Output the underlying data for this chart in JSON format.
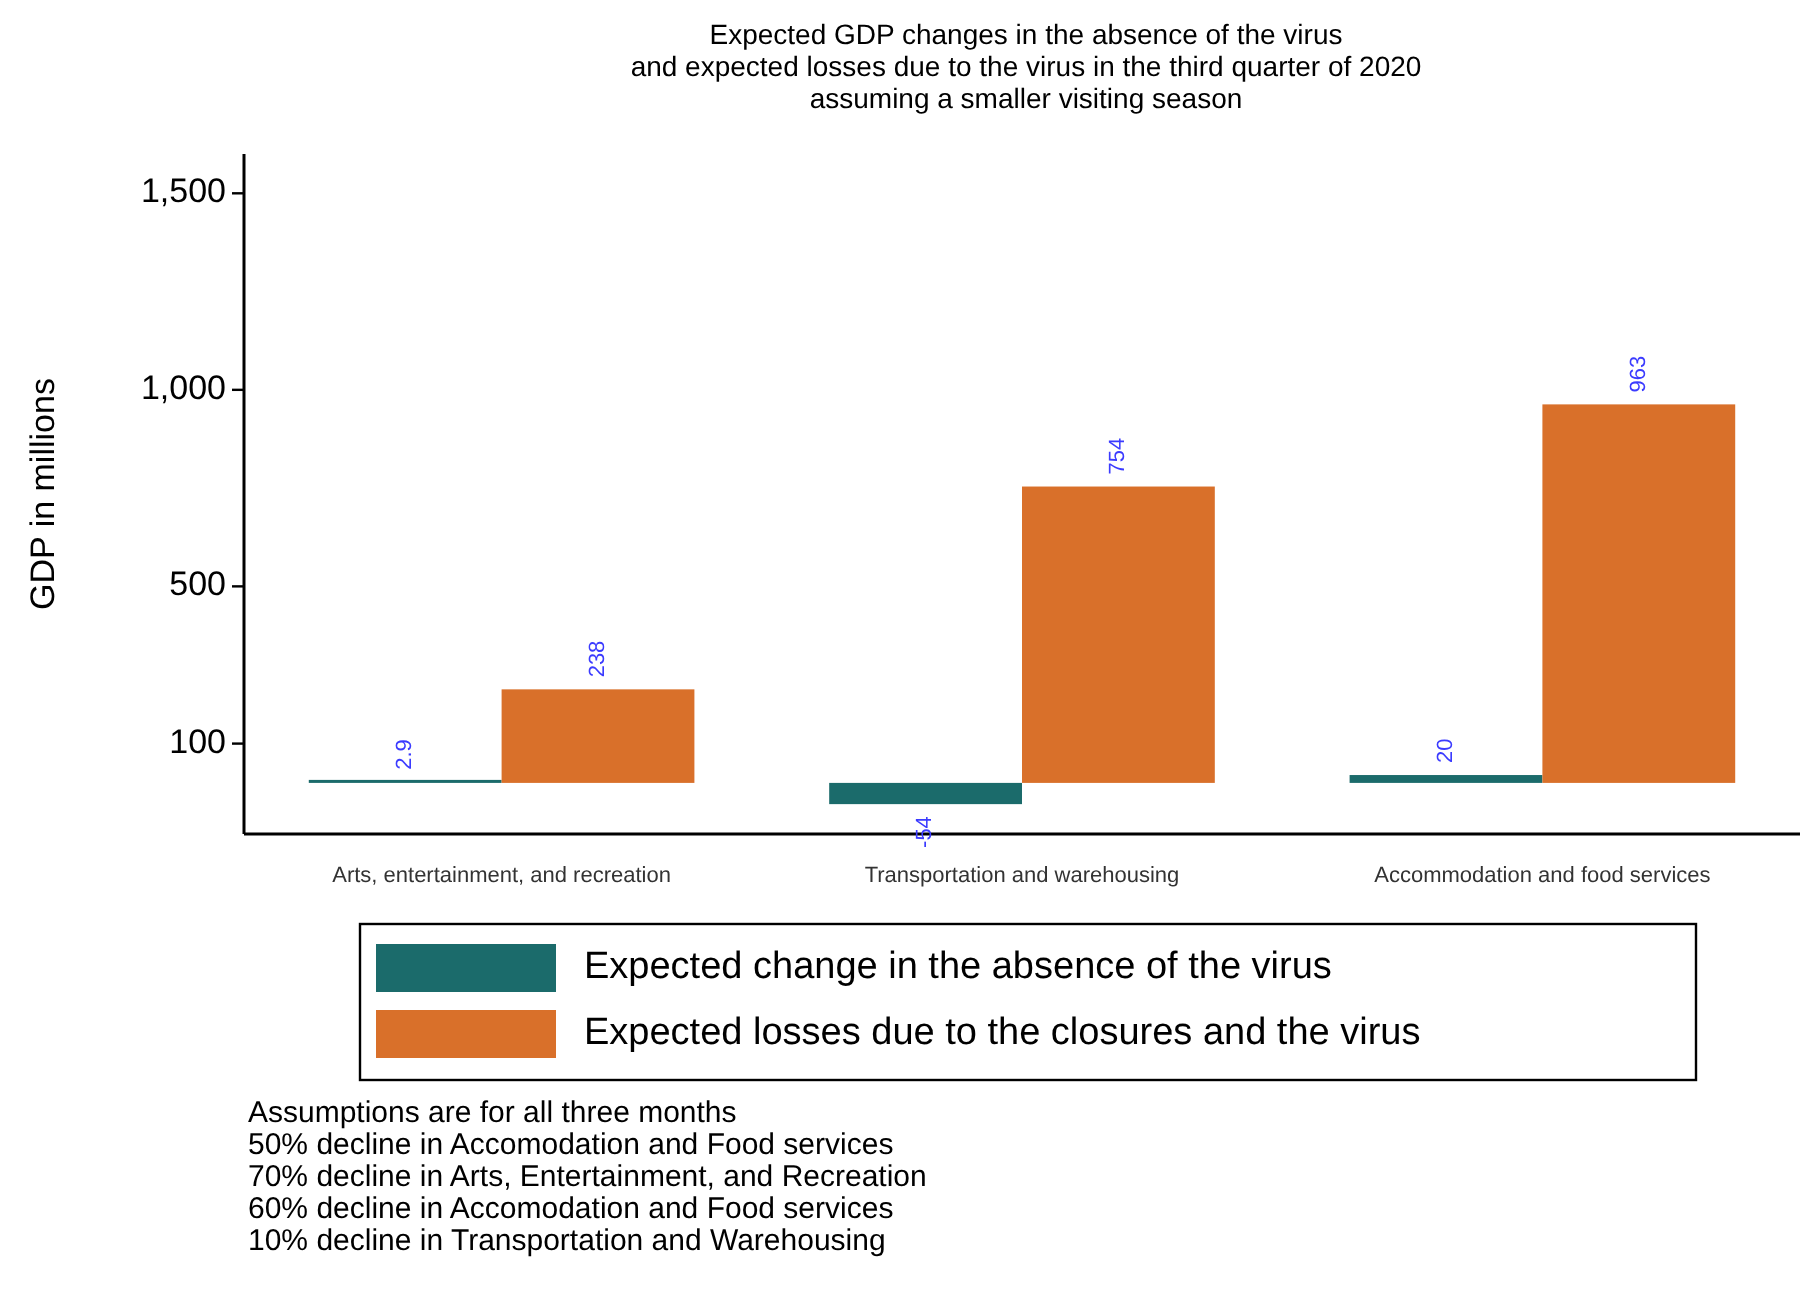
{
  "chart_data": {
    "type": "bar",
    "title": "Expected GDP changes in the absence of the virus\nand expected losses due to the virus in the third quarter of 2020\nassuming a smaller visiting season",
    "ylabel": "GDP in millions",
    "categories": [
      "Arts, entertainment, and recreation",
      "Transportation and warehousing",
      "Accommodation and food services"
    ],
    "series": [
      {
        "name": "Expected change in the absence of the virus",
        "color": "#1b6b6b",
        "values": [
          2.9,
          -54,
          20
        ]
      },
      {
        "name": "Expected losses due to the closures and the virus",
        "color": "#d9702a",
        "values": [
          238,
          754,
          963
        ]
      }
    ],
    "ylim": [
      -130,
      1600
    ],
    "yticks": [
      {
        "value": 100,
        "label": "100"
      },
      {
        "value": 500,
        "label": "500"
      },
      {
        "value": 1000,
        "label": "1,000"
      },
      {
        "value": 1500,
        "label": "1,500"
      }
    ],
    "data_labels": true,
    "legend": "bottom",
    "grid": false,
    "annotations": [
      "Assumptions are for all three months",
      "50% decline in Accomodation and Food services",
      "70% decline in Arts, Entertainment, and Recreation",
      "60% decline in Accomodation and Food services",
      "10% decline in Transportation and Warehousing"
    ]
  }
}
